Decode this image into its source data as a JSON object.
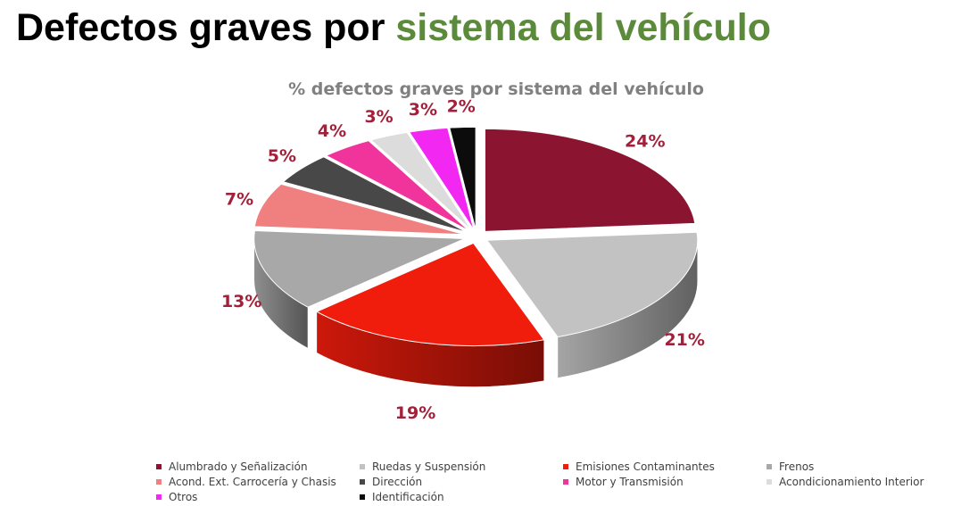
{
  "slide": {
    "title_part1": "Defectos graves por",
    "title_part2": "sistema del vehículo"
  },
  "colors": {
    "title_accent": "#5a8a3a",
    "label_color": "#a3203a"
  },
  "chart_data": {
    "type": "pie",
    "style": "3d-exploded",
    "title": "% defectos graves por sistema del vehículo",
    "legend_position": "bottom",
    "categories": [
      "Alumbrado y Señalización",
      "Ruedas y Suspensión",
      "Emisiones Contaminantes",
      "Frenos",
      "Acond. Ext. Carrocería y Chasis",
      "Dirección",
      "Motor y Transmisión",
      "Acondicionamiento Interior",
      "Otros",
      "Identificación"
    ],
    "values": [
      24,
      21,
      19,
      13,
      7,
      5,
      4,
      3,
      3,
      2
    ],
    "data_labels": [
      "24%",
      "21%",
      "19%",
      "13%",
      "7%",
      "5%",
      "4%",
      "3%",
      "3%",
      "2%"
    ],
    "colors": [
      "#8b1530",
      "#c2c2c2",
      "#f01c0c",
      "#a8a8a8",
      "#f08080",
      "#484848",
      "#f0349c",
      "#dcdcdc",
      "#f228f2",
      "#0c0c0c"
    ]
  }
}
